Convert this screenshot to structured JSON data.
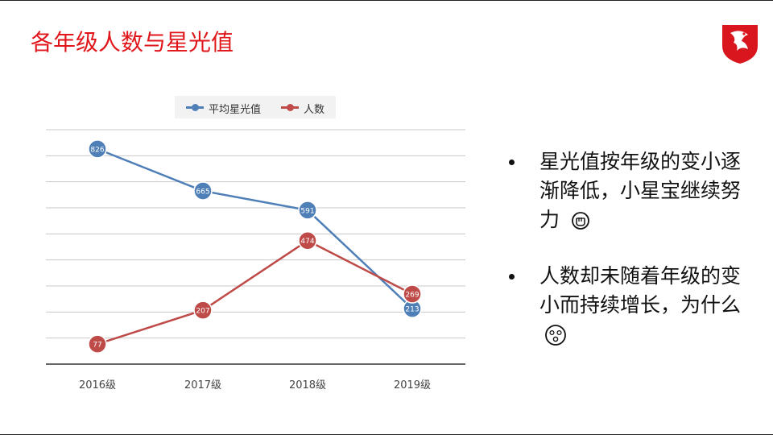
{
  "slide": {
    "title": "各年级人数与星光值",
    "bullets": [
      {
        "text": "星光值按年级的变小逐渐降低，小星宝继续努力",
        "emoji_icon": "fist-icon"
      },
      {
        "text": "人数却未随着年级的变小而持续增长，为什么",
        "emoji_icon": "surprised-face-icon"
      }
    ],
    "logo_icon": "dragon-shield-logo-icon",
    "colors": {
      "title": "#e0161b",
      "series_blue": "#4f7fb7",
      "series_red": "#be4b48"
    }
  },
  "chart_data": {
    "type": "line",
    "categories": [
      "2016级",
      "2017级",
      "2018级",
      "2019级"
    ],
    "series": [
      {
        "name": "平均星光值",
        "color": "#4f7fb7",
        "values": [
          826,
          665,
          591,
          213
        ]
      },
      {
        "name": "人数",
        "color": "#be4b48",
        "values": [
          77,
          207,
          474,
          269
        ]
      }
    ],
    "ylim": [
      0,
      900
    ],
    "grid": true,
    "legend_position": "top"
  }
}
